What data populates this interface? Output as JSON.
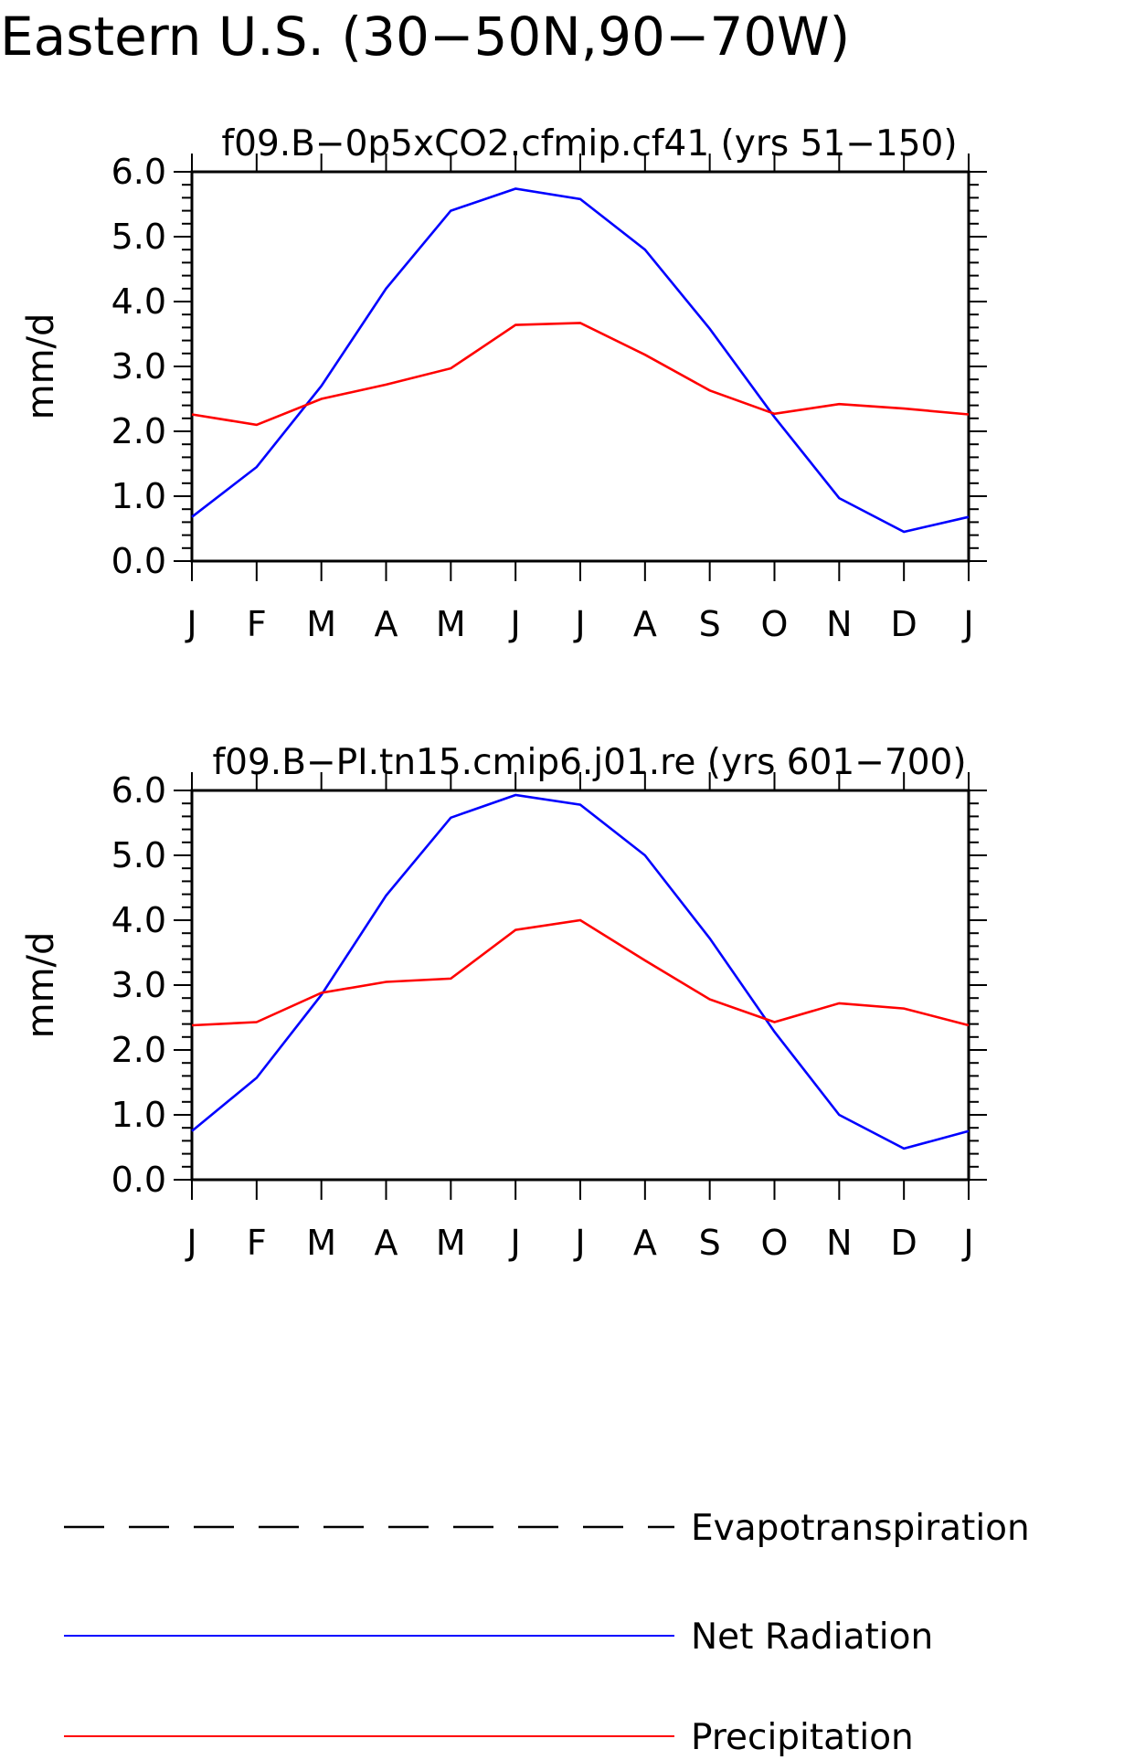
{
  "figure": {
    "title": "Eastern U.S. (30−50N,90−70W)"
  },
  "legend": [
    {
      "label": "Evapotranspiration",
      "style": "dashed",
      "color": "#000000"
    },
    {
      "label": "Net Radiation",
      "style": "solid",
      "color": "#0000ff"
    },
    {
      "label": "Precipitation",
      "style": "solid",
      "color": "#ff0000"
    }
  ],
  "chart_data": [
    {
      "type": "line",
      "title": "f09.B−0p5xCO2.cfmip.cf41 (yrs 51−150)",
      "xlabel": "",
      "ylabel": "mm/d",
      "categories": [
        "J",
        "F",
        "M",
        "A",
        "M",
        "J",
        "J",
        "A",
        "S",
        "O",
        "N",
        "D",
        "J"
      ],
      "ylim": [
        0,
        6
      ],
      "yticks": [
        "0.0",
        "1.0",
        "2.0",
        "3.0",
        "4.0",
        "5.0",
        "6.0"
      ],
      "grid": false,
      "series": [
        {
          "name": "Net Radiation",
          "color": "#0000ff",
          "values": [
            0.68,
            1.45,
            2.7,
            4.2,
            5.4,
            5.74,
            5.58,
            4.8,
            3.58,
            2.22,
            0.97,
            0.45,
            0.68
          ]
        },
        {
          "name": "Precipitation",
          "color": "#ff0000",
          "values": [
            2.26,
            2.1,
            2.5,
            2.72,
            2.97,
            3.64,
            3.67,
            3.18,
            2.63,
            2.27,
            2.42,
            2.35,
            2.26
          ]
        }
      ]
    },
    {
      "type": "line",
      "title": "f09.B−PI.tn15.cmip6.j01.re (yrs 601−700)",
      "xlabel": "",
      "ylabel": "mm/d",
      "categories": [
        "J",
        "F",
        "M",
        "A",
        "M",
        "J",
        "J",
        "A",
        "S",
        "O",
        "N",
        "D",
        "J"
      ],
      "ylim": [
        0,
        6
      ],
      "yticks": [
        "0.0",
        "1.0",
        "2.0",
        "3.0",
        "4.0",
        "5.0",
        "6.0"
      ],
      "grid": false,
      "series": [
        {
          "name": "Net Radiation",
          "color": "#0000ff",
          "values": [
            0.75,
            1.57,
            2.85,
            4.38,
            5.58,
            5.93,
            5.78,
            5.0,
            3.72,
            2.28,
            1.0,
            0.48,
            0.75
          ]
        },
        {
          "name": "Precipitation",
          "color": "#ff0000",
          "values": [
            2.38,
            2.43,
            2.88,
            3.05,
            3.1,
            3.85,
            4.0,
            3.38,
            2.78,
            2.43,
            2.72,
            2.64,
            2.38
          ]
        }
      ]
    }
  ]
}
